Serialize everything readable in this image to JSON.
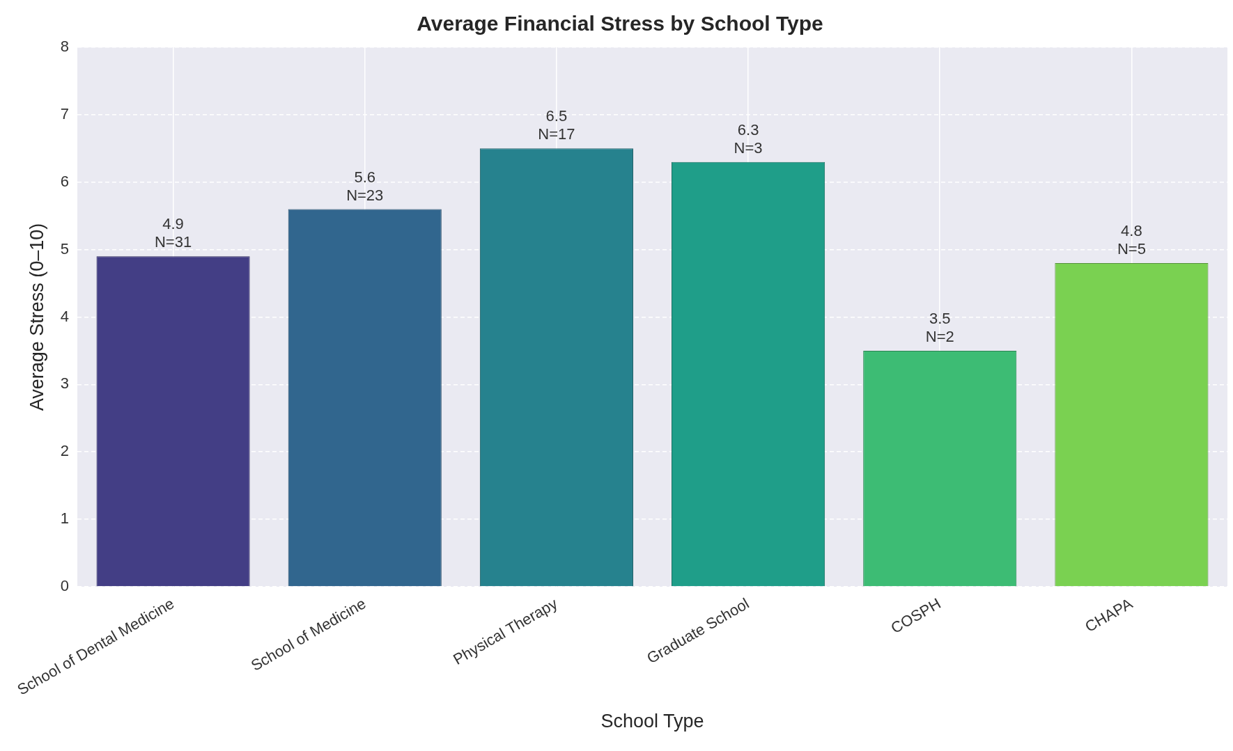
{
  "chart_data": {
    "type": "bar",
    "title": "Average Financial Stress by School Type",
    "xlabel": "School Type",
    "ylabel": "Average Stress (0–10)",
    "categories": [
      "School of Dental Medicine",
      "School of Medicine",
      "Physical Therapy",
      "Graduate School",
      "COSPH",
      "CHAPA"
    ],
    "values": [
      4.9,
      5.6,
      6.5,
      6.3,
      3.5,
      4.8
    ],
    "colors": [
      "#433e85",
      "#31668e",
      "#26828e",
      "#1f9e89",
      "#3dbc74",
      "#7ad151"
    ],
    "value_labels": [
      "4.9\nN=31",
      "5.6\nN=23",
      "6.5\nN=17",
      "6.3\nN=3",
      "3.5\nN=2",
      "4.8\nN=5"
    ],
    "ylim": [
      0,
      8
    ],
    "yticks": [
      0,
      1,
      2,
      3,
      4,
      5,
      6,
      7,
      8
    ],
    "grid": true,
    "legend": false
  }
}
